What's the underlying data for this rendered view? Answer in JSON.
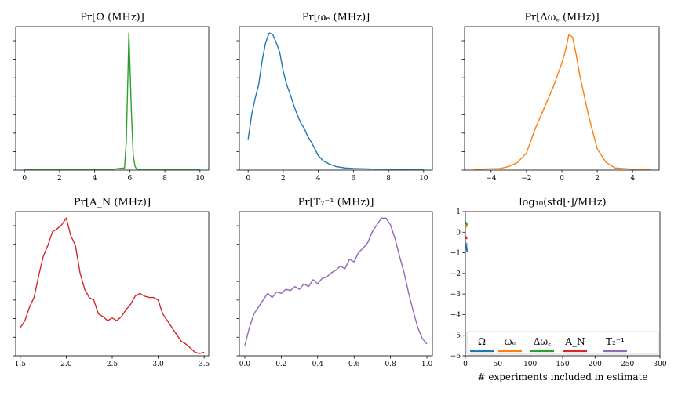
{
  "colors": {
    "blue": "#1f77b4",
    "orange": "#ff7f0e",
    "green": "#2ca02c",
    "red": "#d62728",
    "purple": "#9467bd"
  },
  "chart_data": [
    {
      "type": "line",
      "title": "Pr[Ω (MHz)]",
      "xlim": [
        -0.5,
        10.5
      ],
      "xticks": [
        0,
        2,
        4,
        6,
        8,
        10
      ],
      "xtick_labels": [
        "0",
        "2",
        "4",
        "6",
        "8",
        "10"
      ],
      "y_ticks_labeled": false,
      "color": "green",
      "x": [
        0,
        5.0,
        5.7,
        5.8,
        5.9,
        5.95,
        6.0,
        6.1,
        6.2,
        6.3,
        6.4,
        7.0,
        10
      ],
      "y": [
        0,
        0,
        0.01,
        0.2,
        0.7,
        1.0,
        0.8,
        0.4,
        0.1,
        0.02,
        0,
        0,
        0
      ]
    },
    {
      "type": "line",
      "title": "Pr[ωₑ (MHz)]",
      "xlim": [
        -0.5,
        10.5
      ],
      "xticks": [
        0,
        2,
        4,
        6,
        8,
        10
      ],
      "xtick_labels": [
        "0",
        "2",
        "4",
        "6",
        "8",
        "10"
      ],
      "y_ticks_labeled": false,
      "color": "blue",
      "x": [
        0,
        0.2,
        0.4,
        0.6,
        0.8,
        1.0,
        1.2,
        1.4,
        1.6,
        1.8,
        2.0,
        2.2,
        2.4,
        2.6,
        2.8,
        3.0,
        3.2,
        3.4,
        3.6,
        3.8,
        4.0,
        4.3,
        4.6,
        5.0,
        5.5,
        6.0,
        7.0,
        8.0,
        9.0,
        10
      ],
      "y": [
        0.22,
        0.4,
        0.52,
        0.62,
        0.8,
        0.93,
        1.0,
        0.99,
        0.93,
        0.86,
        0.72,
        0.62,
        0.55,
        0.47,
        0.4,
        0.34,
        0.3,
        0.24,
        0.2,
        0.15,
        0.1,
        0.06,
        0.04,
        0.02,
        0.01,
        0.005,
        0.002,
        0.001,
        0,
        0
      ]
    },
    {
      "type": "line",
      "title": "Pr[Δω꜀ (MHz)]",
      "xlim": [
        -5.5,
        5.5
      ],
      "xticks": [
        -4,
        -2,
        0,
        2,
        4
      ],
      "xtick_labels": [
        "−4",
        "−2",
        "0",
        "2",
        "4"
      ],
      "y_ticks_labeled": false,
      "color": "orange",
      "x": [
        -5,
        -3.5,
        -3,
        -2.5,
        -2,
        -1.5,
        -1,
        -0.5,
        0,
        0.2,
        0.4,
        0.6,
        0.8,
        1.0,
        1.5,
        2,
        2.5,
        3,
        4,
        5
      ],
      "y": [
        0,
        0.005,
        0.02,
        0.05,
        0.12,
        0.3,
        0.45,
        0.6,
        0.78,
        0.87,
        0.99,
        0.97,
        0.85,
        0.7,
        0.4,
        0.15,
        0.05,
        0.01,
        0,
        0
      ]
    },
    {
      "type": "line",
      "title": "Pr[A_N (MHz)]",
      "xlim": [
        1.45,
        3.55
      ],
      "xticks": [
        1.5,
        2.0,
        2.5,
        3.0,
        3.5
      ],
      "xtick_labels": [
        "1.5",
        "2.0",
        "2.5",
        "3.0",
        "3.5"
      ],
      "y_ticks_labeled": false,
      "color": "red",
      "x": [
        1.5,
        1.55,
        1.6,
        1.65,
        1.7,
        1.75,
        1.8,
        1.85,
        1.9,
        1.95,
        2.0,
        2.05,
        2.1,
        2.15,
        2.2,
        2.25,
        2.3,
        2.35,
        2.4,
        2.45,
        2.5,
        2.55,
        2.6,
        2.65,
        2.7,
        2.75,
        2.8,
        2.85,
        2.9,
        2.95,
        3.0,
        3.05,
        3.1,
        3.15,
        3.2,
        3.25,
        3.3,
        3.35,
        3.4,
        3.45,
        3.5
      ],
      "y": [
        0.2,
        0.25,
        0.35,
        0.42,
        0.58,
        0.72,
        0.8,
        0.9,
        0.92,
        0.95,
        1.0,
        0.87,
        0.8,
        0.6,
        0.48,
        0.42,
        0.4,
        0.3,
        0.28,
        0.25,
        0.27,
        0.25,
        0.28,
        0.33,
        0.37,
        0.43,
        0.45,
        0.43,
        0.42,
        0.42,
        0.4,
        0.3,
        0.25,
        0.2,
        0.15,
        0.1,
        0.08,
        0.05,
        0.02,
        0.01,
        0.02
      ]
    },
    {
      "type": "line",
      "title": "Pr[T₂⁻¹ (MHz)]",
      "xlim": [
        -0.03,
        1.03
      ],
      "xticks": [
        0.0,
        0.2,
        0.4,
        0.6,
        0.8,
        1.0
      ],
      "xtick_labels": [
        "0.0",
        "0.2",
        "0.4",
        "0.6",
        "0.8",
        "1.0"
      ],
      "y_ticks_labeled": false,
      "color": "purple",
      "x": [
        0.0,
        0.025,
        0.05,
        0.075,
        0.1,
        0.125,
        0.15,
        0.175,
        0.2,
        0.225,
        0.25,
        0.275,
        0.3,
        0.325,
        0.35,
        0.375,
        0.4,
        0.425,
        0.45,
        0.475,
        0.5,
        0.525,
        0.55,
        0.575,
        0.6,
        0.625,
        0.65,
        0.675,
        0.7,
        0.725,
        0.75,
        0.775,
        0.8,
        0.825,
        0.85,
        0.875,
        0.9,
        0.925,
        0.95,
        0.975,
        1.0
      ],
      "y": [
        0.07,
        0.2,
        0.3,
        0.35,
        0.4,
        0.45,
        0.42,
        0.46,
        0.45,
        0.48,
        0.47,
        0.5,
        0.48,
        0.52,
        0.5,
        0.55,
        0.52,
        0.56,
        0.57,
        0.6,
        0.62,
        0.65,
        0.63,
        0.7,
        0.68,
        0.75,
        0.78,
        0.82,
        0.9,
        0.95,
        1.0,
        1.0,
        0.95,
        0.85,
        0.72,
        0.6,
        0.45,
        0.32,
        0.2,
        0.12,
        0.08
      ]
    },
    {
      "type": "line",
      "title": "log₁₀(std[·]/MHz)",
      "xlabel": "# experiments included in estimate",
      "xlim": [
        0,
        300
      ],
      "ylim": [
        -6,
        1
      ],
      "xticks": [
        0,
        50,
        100,
        150,
        200,
        250,
        300
      ],
      "xtick_labels": [
        "0",
        "50",
        "100",
        "150",
        "200",
        "250",
        "300"
      ],
      "yticks": [
        -6,
        -5,
        -4,
        -3,
        -2,
        -1,
        0,
        1
      ],
      "ytick_labels": [
        "−6",
        "−5",
        "−4",
        "−3",
        "−2",
        "−1",
        "0",
        "1"
      ],
      "legend": "lower center",
      "series": [
        {
          "name": "Ω",
          "color": "blue",
          "x": [
            0,
            1,
            2,
            3
          ],
          "y": [
            -0.5,
            -0.6,
            -0.8,
            -0.95
          ]
        },
        {
          "name": "ωₑ",
          "color": "orange",
          "x": [
            0,
            1,
            2,
            3
          ],
          "y": [
            0.3,
            0.35,
            0.3,
            0.25
          ]
        },
        {
          "name": "Δω꜀",
          "color": "green",
          "x": [
            0,
            1,
            2,
            3
          ],
          "y": [
            0.5,
            0.45,
            0.4,
            0.35
          ]
        },
        {
          "name": "A_N",
          "color": "red",
          "x": [
            0,
            1,
            2,
            3
          ],
          "y": [
            -0.2,
            -0.25,
            -0.3,
            -0.3
          ]
        },
        {
          "name": "T₂⁻¹",
          "color": "purple",
          "x": [
            0,
            1,
            2,
            3
          ],
          "y": [
            -0.5,
            -0.55,
            -0.6,
            -0.62
          ]
        }
      ]
    }
  ]
}
